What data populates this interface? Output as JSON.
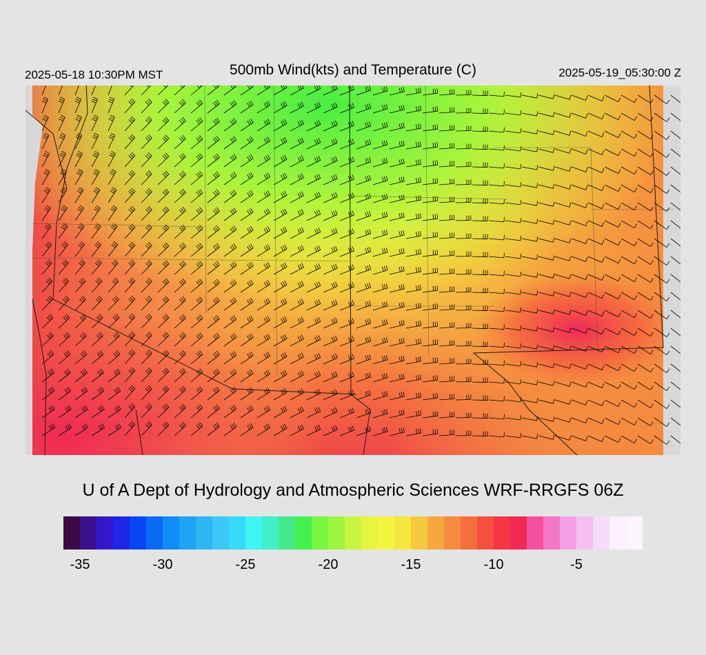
{
  "header": {
    "local_time": "2025-05-18 10:30PM MST",
    "title": "500mb Wind(kts) and Temperature (C)",
    "utc_time": "2025-05-19_05:30:00 Z"
  },
  "credit": "U of A Dept of Hydrology and Atmospheric Sciences WRF-RRGFS 06Z",
  "colorbar": {
    "min": -36,
    "max": -1,
    "colors": [
      "#3b0a45",
      "#3a0f8c",
      "#3318c9",
      "#1f26e6",
      "#0a45f5",
      "#0a6af5",
      "#108cf5",
      "#1ea3f5",
      "#2eb6f5",
      "#3cc8f7",
      "#38dbf7",
      "#40f5f5",
      "#40f0c8",
      "#45eb8a",
      "#45f050",
      "#78f540",
      "#a0f540",
      "#c8f540",
      "#e6f540",
      "#f5f540",
      "#f5e640",
      "#f5c840",
      "#f5a840",
      "#f58a40",
      "#f56e40",
      "#f55040",
      "#f53645",
      "#f02a55",
      "#f550a0",
      "#f578c8",
      "#f5a0e6",
      "#f5c0f0",
      "#f5dcf7",
      "#fbf0fb",
      "#fdf5fd"
    ],
    "ticks": [
      {
        "label": "-35",
        "value": -35
      },
      {
        "label": "-30",
        "value": -30
      },
      {
        "label": "-25",
        "value": -25
      },
      {
        "label": "-20",
        "value": -20
      },
      {
        "label": "-15",
        "value": -15
      },
      {
        "label": "-10",
        "value": -10
      },
      {
        "label": "-5",
        "value": -5
      }
    ]
  }
}
